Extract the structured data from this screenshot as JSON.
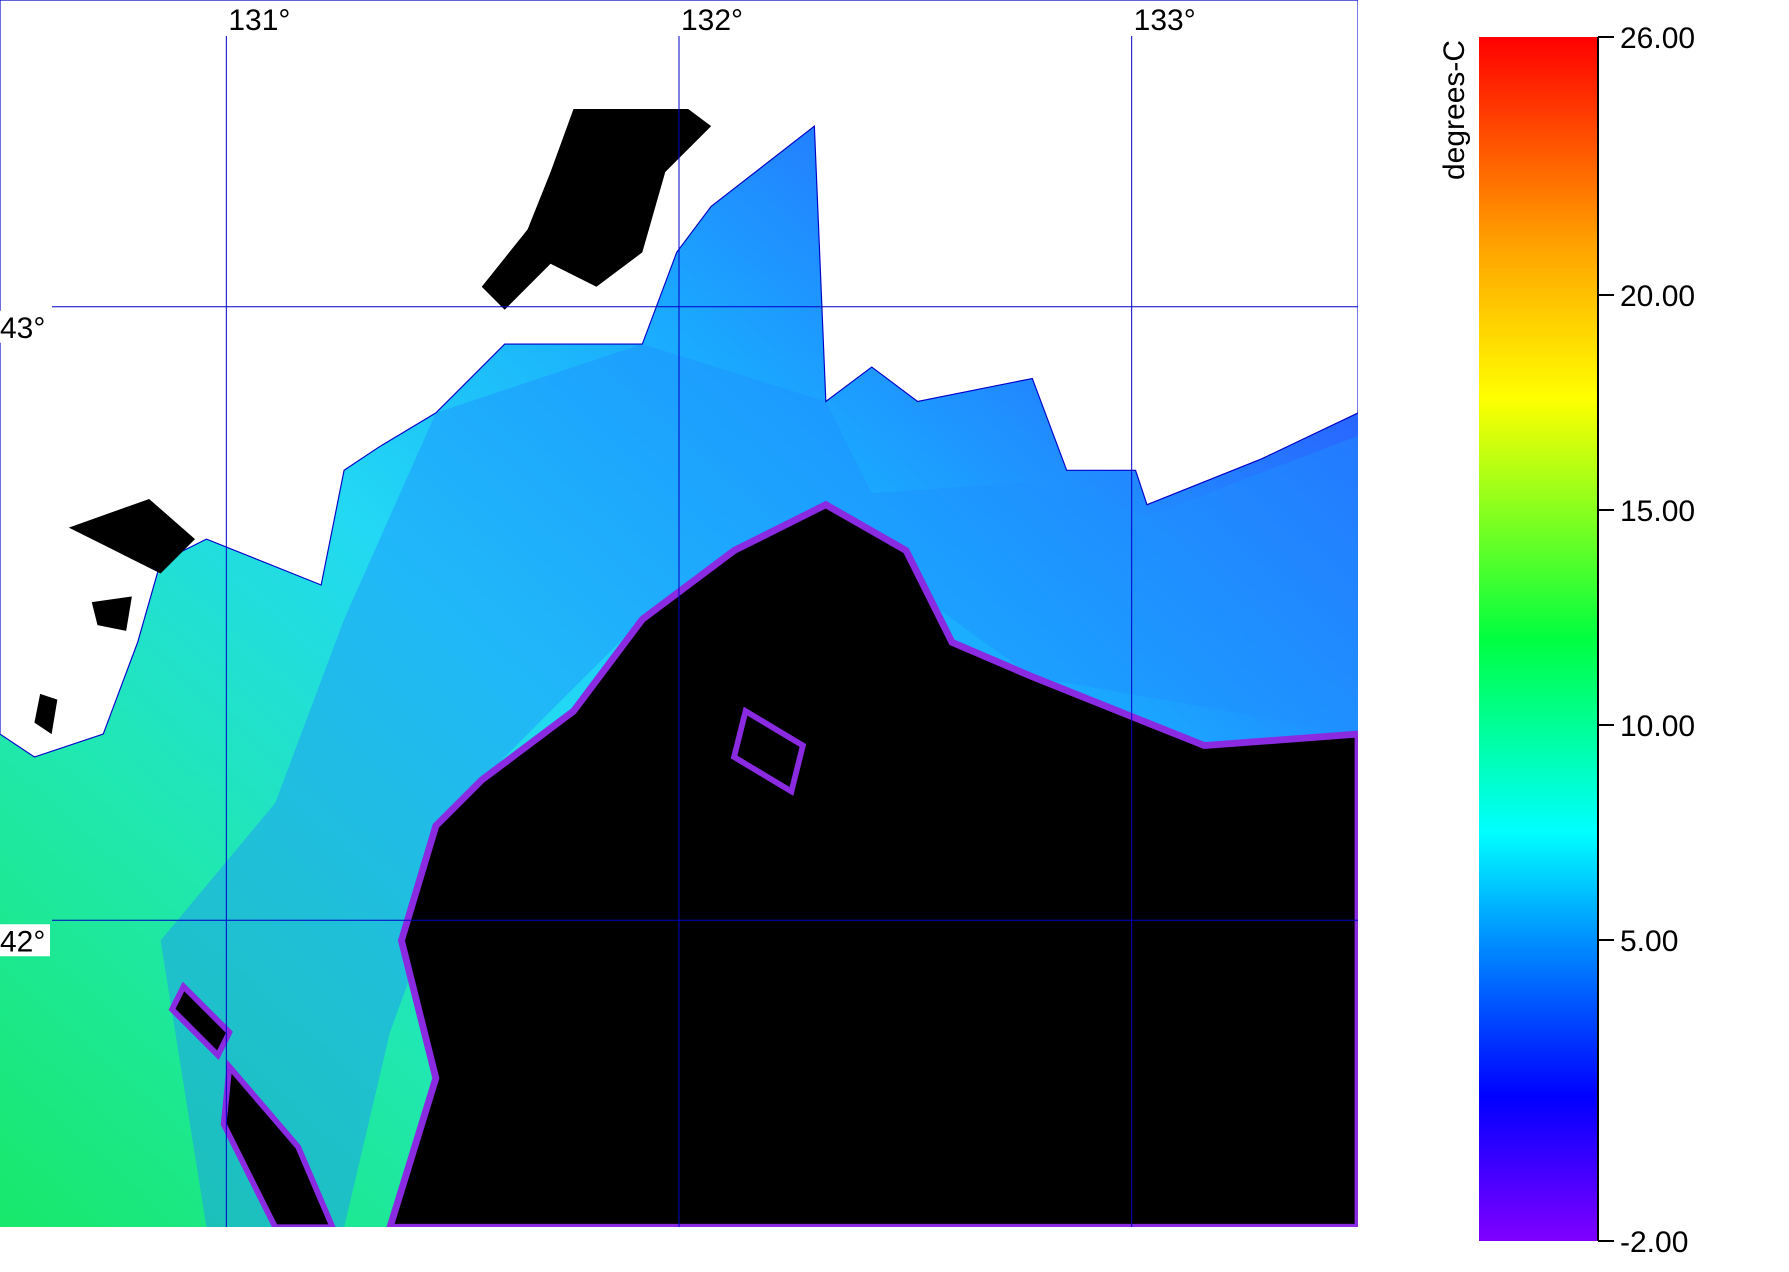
{
  "chart_data": {
    "type": "map",
    "xlim": [
      130.5,
      133.5
    ],
    "ylim": [
      41.5,
      43.5
    ],
    "xticks": [
      {
        "value": 131,
        "label": "131°"
      },
      {
        "value": 132,
        "label": "132°"
      },
      {
        "value": 133,
        "label": "133°"
      }
    ],
    "yticks": [
      {
        "value": 43,
        "label": "43°"
      },
      {
        "value": 42,
        "label": "42°"
      }
    ],
    "grid": true,
    "grid_color": "#0000c8",
    "colorbar": {
      "title": "degrees-C",
      "lim": [
        -2,
        26
      ],
      "ticks": [
        {
          "value": -2,
          "label": "-2.00"
        },
        {
          "value": 5,
          "label": "5.00"
        },
        {
          "value": 10,
          "label": "10.00"
        },
        {
          "value": 15,
          "label": "15.00"
        },
        {
          "value": 20,
          "label": "20.00"
        },
        {
          "value": 26,
          "label": "26.00"
        }
      ]
    }
  }
}
